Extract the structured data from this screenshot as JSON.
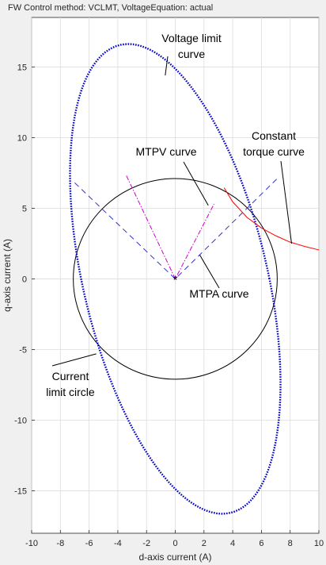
{
  "window": {
    "title": "FW Control method: VCLMT, VoltageEquation: actual"
  },
  "chart_data": {
    "type": "line",
    "title": "FW Control method: VCLMT, VoltageEquation: actual",
    "xlabel": "d-axis current (A)",
    "ylabel": "q-axis current (A)",
    "xlim": [
      -10,
      10
    ],
    "ylim": [
      -18,
      18.5
    ],
    "xticks": [
      -10,
      -8,
      -6,
      -4,
      -2,
      0,
      2,
      4,
      6,
      8,
      10
    ],
    "yticks": [
      -15,
      -10,
      -5,
      0,
      5,
      10,
      15
    ],
    "grid": true,
    "colors": {
      "voltage_limit": "#0000cc",
      "current_limit": "#000000",
      "mtpa": "#3333cc",
      "mtpv": "#cc00cc",
      "constant_torque": "#ff0000",
      "grid": "#dcdcdc",
      "background": "#ffffff"
    },
    "current_limit_circle": {
      "center": [
        0,
        0
      ],
      "radius": 7.1
    },
    "voltage_limit_ellipse": {
      "points": [
        [
          -5.0,
          16.9
        ],
        [
          5.0,
          -16.9
        ],
        [
          -7.1,
          2.6
        ],
        [
          7.1,
          -2.6
        ],
        [
          -3.0,
          15.9
        ],
        [
          3.0,
          -15.9
        ],
        [
          -6.9,
          10.0
        ],
        [
          6.9,
          -10.0
        ]
      ]
    },
    "mtpa": {
      "points": [
        [
          -7.0,
          6.8
        ],
        [
          0,
          0
        ],
        [
          7.2,
          7.2
        ]
      ]
    },
    "mtpv": {
      "points": [
        [
          -3.4,
          7.3
        ],
        [
          0,
          0
        ],
        [
          2.7,
          5.3
        ]
      ]
    },
    "constant_torque": {
      "x": [
        3.4,
        4.0,
        5.0,
        6.0,
        7.0,
        8.0,
        9.0,
        10.0
      ],
      "y": [
        6.45,
        5.45,
        4.35,
        3.6,
        3.05,
        2.6,
        2.3,
        2.05
      ]
    },
    "origin_marker": {
      "x": 0,
      "y": 0,
      "symbol": "*"
    },
    "annotations": [
      {
        "id": "voltage-limit",
        "lines": [
          "Voltage limit",
          "curve"
        ],
        "target": [
          -0.7,
          14.4
        ]
      },
      {
        "id": "mtpv",
        "lines": [
          "MTPV curve"
        ],
        "target": [
          2.3,
          5.2
        ]
      },
      {
        "id": "constant-torque",
        "lines": [
          "Constant",
          "torque curve"
        ],
        "target": [
          8.1,
          2.5
        ]
      },
      {
        "id": "mtpa",
        "lines": [
          "MTPA curve"
        ],
        "target": [
          1.7,
          1.7
        ]
      },
      {
        "id": "current-limit",
        "lines": [
          "Current",
          "limit circle"
        ],
        "target": [
          -5.5,
          -5.3
        ]
      }
    ]
  }
}
